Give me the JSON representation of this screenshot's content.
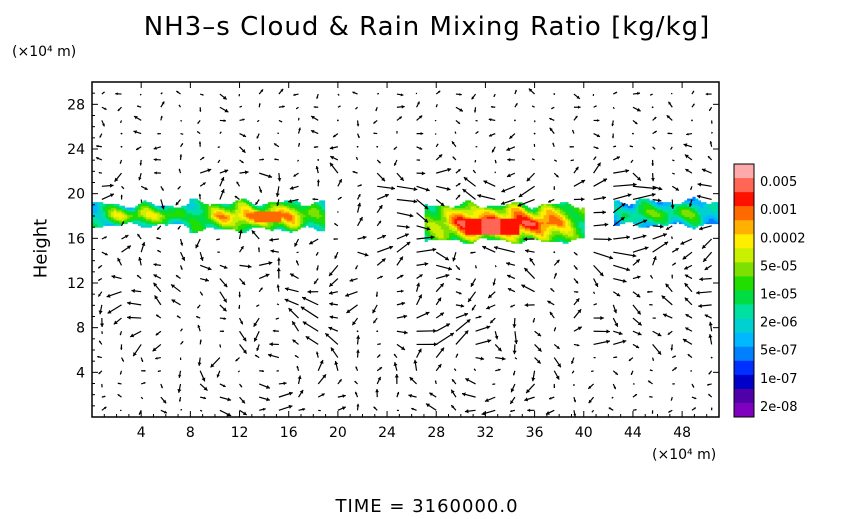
{
  "title": "NH3–s Cloud & Rain Mixing Ratio [kg/kg]",
  "y_unit_label": "(×10⁴ m)",
  "x_unit_label": "(×10⁴ m)",
  "time_label": "TIME = 3160000.0",
  "chart_data": {
    "type": "heatmap",
    "title": "NH3–s Cloud & Rain Mixing Ratio [kg/kg]",
    "xlabel": "",
    "ylabel": "Height",
    "xlim": [
      0,
      51
    ],
    "ylim": [
      0,
      30
    ],
    "x_ticks": [
      4,
      8,
      12,
      16,
      20,
      24,
      28,
      32,
      36,
      40,
      44,
      48
    ],
    "y_ticks": [
      4,
      8,
      12,
      16,
      20,
      24,
      28
    ],
    "x_tick_labels": [
      "4",
      "8",
      "12",
      "16",
      "20",
      "24",
      "28",
      "32",
      "36",
      "40",
      "44",
      "48"
    ],
    "y_tick_labels": [
      "4",
      "8",
      "12",
      "16",
      "20",
      "24",
      "28"
    ],
    "colorbar": {
      "labels": [
        "0.005",
        "0.001",
        "0.0002",
        "5e-05",
        "1e-05",
        "2e-06",
        "5e-07",
        "1e-07",
        "2e-08"
      ],
      "colors": [
        "#ffaaaa",
        "#ff6655",
        "#ff1100",
        "#ff6a00",
        "#ffb000",
        "#ffee00",
        "#c8f000",
        "#7ee000",
        "#22dd00",
        "#00dd44",
        "#00e0a0",
        "#00d0d0",
        "#00b8ff",
        "#0080ff",
        "#0030ff",
        "#0000c8",
        "#5000a8",
        "#8000c0"
      ]
    },
    "cloud_layers": [
      {
        "x_range": [
          0,
          8.0
        ],
        "y_range": [
          17.2,
          19.0
        ],
        "peak": "1e-05"
      },
      {
        "x_range": [
          8.0,
          19.0
        ],
        "y_range": [
          16.8,
          19.2
        ],
        "peak": "0.0002"
      },
      {
        "x_range": [
          27.0,
          40.0
        ],
        "y_range": [
          15.8,
          19.0
        ],
        "peak": "0.001"
      },
      {
        "x_range": [
          42.5,
          51.0
        ],
        "y_range": [
          17.2,
          19.3
        ],
        "peak": "2e-06"
      }
    ],
    "wind_vectors": "quiver field; circulation cells near x=14 and x=32 below height 8"
  }
}
